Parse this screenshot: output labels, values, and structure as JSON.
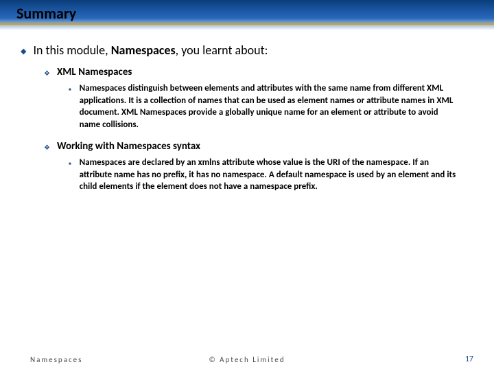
{
  "title": "Summary",
  "intro": {
    "before": "In this module, ",
    "bold": "Namespaces",
    "after": ", you learnt about:"
  },
  "sections": [
    {
      "heading": "XML Namespaces",
      "body": "Namespaces distinguish between elements and attributes with the same name from different XML applications. It is a collection of names that can be used as element names or attribute names in XML document. XML Namespaces provide a globally unique name for an element or attribute to avoid name collisions."
    },
    {
      "heading": "Working with Namespaces syntax",
      "body": "Namespaces are declared by an xmlns attribute whose value is the URI of the namespace. If an attribute name has no prefix, it has no namespace. A default namespace is used by an element and its child elements if the element does not have a namespace prefix."
    }
  ],
  "footer": {
    "left": "Namespaces",
    "center": "© Aptech Limited",
    "page": "17"
  },
  "colors": {
    "accent": "#1a4e8a",
    "underline": "#d4a017"
  }
}
